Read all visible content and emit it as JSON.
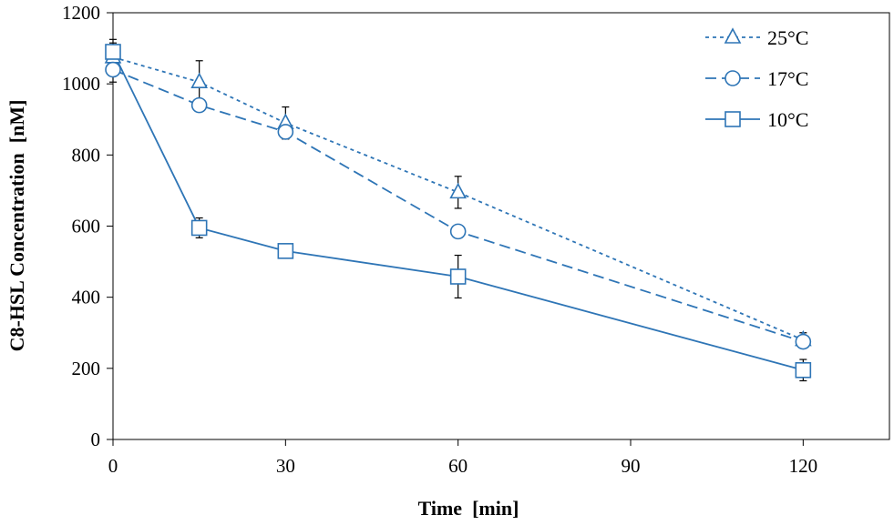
{
  "chart_data": {
    "type": "line",
    "xlabel": "Time  [min]",
    "ylabel": "C8-HSL Concentration  [nM]",
    "xlim": [
      0,
      135
    ],
    "ylim": [
      0,
      1200
    ],
    "xticks": [
      0,
      30,
      60,
      90,
      120
    ],
    "yticks": [
      0,
      200,
      400,
      600,
      800,
      1000,
      1200
    ],
    "grid": false,
    "legend_position": "top-right",
    "color": "#2E75B6",
    "series": [
      {
        "name": "25°C",
        "marker": "triangle",
        "line_style": "short-dash",
        "x": [
          0,
          15,
          30,
          60,
          120
        ],
        "y": [
          1075,
          1005,
          890,
          695,
          280
        ],
        "err": [
          40,
          60,
          45,
          45,
          20
        ]
      },
      {
        "name": "17°C",
        "marker": "circle",
        "line_style": "long-dash",
        "x": [
          0,
          15,
          30,
          60,
          120
        ],
        "y": [
          1040,
          940,
          865,
          585,
          275
        ],
        "err": [
          35,
          15,
          20,
          15,
          15
        ]
      },
      {
        "name": "10°C",
        "marker": "square",
        "line_style": "solid",
        "x": [
          0,
          15,
          30,
          60,
          120
        ],
        "y": [
          1090,
          595,
          530,
          458,
          195
        ],
        "err": [
          35,
          28,
          20,
          60,
          30
        ]
      }
    ]
  }
}
